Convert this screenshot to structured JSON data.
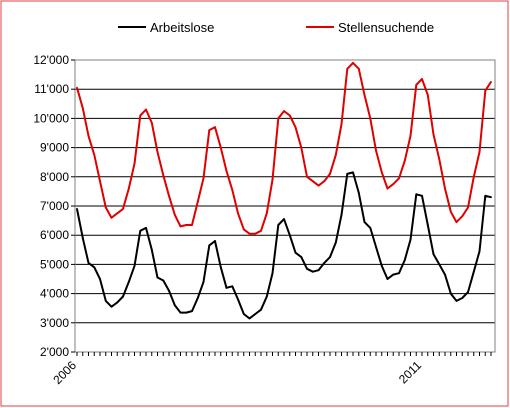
{
  "chart_data": {
    "type": "line",
    "title": "",
    "xlabel": "",
    "ylabel": "",
    "ylim": [
      2000,
      12000
    ],
    "yticks": [
      2000,
      3000,
      4000,
      5000,
      6000,
      7000,
      8000,
      9000,
      10000,
      11000,
      12000
    ],
    "ytick_labels": [
      "2'000",
      "3'000",
      "4'000",
      "5'000",
      "6'000",
      "7'000",
      "8'000",
      "9'000",
      "10'000",
      "11'000",
      "12'000"
    ],
    "x_start": "2006-01",
    "x_label_ticks": [
      {
        "month_index": 0,
        "label": "2006"
      },
      {
        "month_index": 60,
        "label": "2011"
      }
    ],
    "grid": "horizontal",
    "legend_position": "top",
    "series": [
      {
        "name": "Arbeitslose",
        "color": "#000000",
        "values": [
          6900,
          5900,
          5050,
          4900,
          4500,
          3750,
          3550,
          3700,
          3900,
          4400,
          4950,
          6150,
          6250,
          5500,
          4550,
          4450,
          4100,
          3600,
          3350,
          3350,
          3400,
          3850,
          4400,
          5650,
          5800,
          4900,
          4200,
          4250,
          3800,
          3300,
          3150,
          3300,
          3450,
          3900,
          4700,
          6350,
          6550,
          6000,
          5400,
          5250,
          4850,
          4750,
          4800,
          5050,
          5250,
          5750,
          6700,
          8100,
          8150,
          7450,
          6450,
          6250,
          5600,
          4950,
          4500,
          4650,
          4700,
          5150,
          5850,
          7400,
          7350,
          6350,
          5350,
          5000,
          4650,
          4000,
          3750,
          3850,
          4050,
          4750,
          5450,
          7350,
          7300
        ]
      },
      {
        "name": "Stellensuchende",
        "color": "#e00000",
        "values": [
          11050,
          10350,
          9400,
          8750,
          7850,
          6950,
          6600,
          6750,
          6900,
          7600,
          8450,
          10100,
          10300,
          9850,
          8850,
          8050,
          7350,
          6700,
          6300,
          6350,
          6350,
          7150,
          7950,
          9600,
          9700,
          9000,
          8200,
          7550,
          6750,
          6200,
          6050,
          6050,
          6150,
          6750,
          7900,
          10000,
          10250,
          10100,
          9700,
          9000,
          8000,
          7850,
          7700,
          7850,
          8100,
          8750,
          9800,
          11700,
          11900,
          11700,
          10800,
          10000,
          8900,
          8150,
          7600,
          7750,
          7950,
          8550,
          9400,
          11150,
          11350,
          10800,
          9450,
          8600,
          7600,
          6800,
          6450,
          6650,
          6950,
          8000,
          8850,
          10950,
          11250
        ]
      }
    ]
  }
}
